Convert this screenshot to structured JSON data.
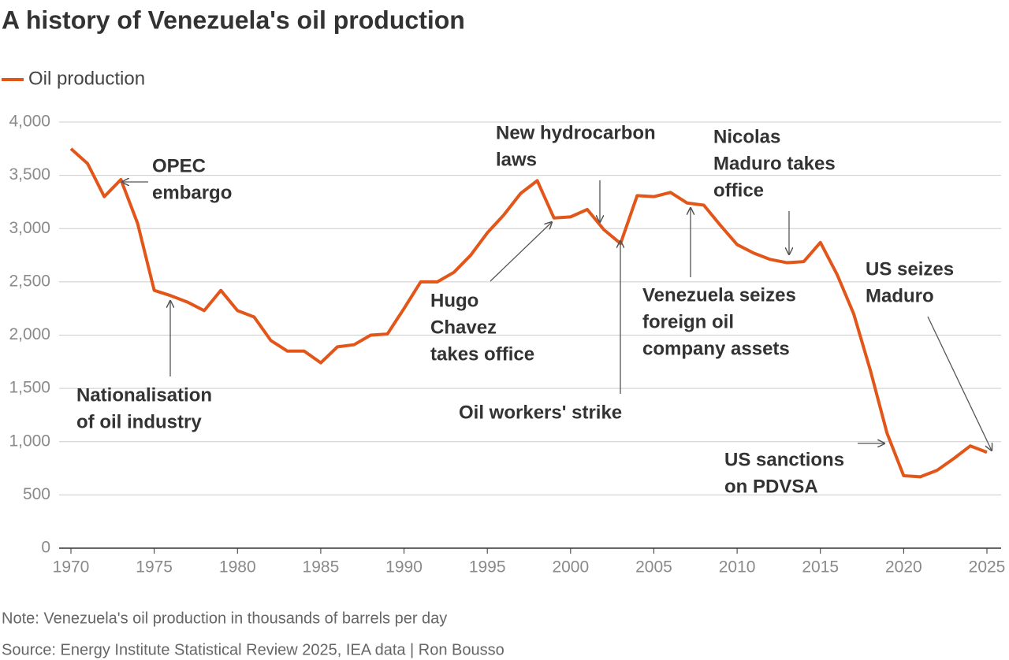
{
  "chart_data": {
    "type": "line",
    "title": "A history of Venezuela's oil production",
    "x": [
      1970,
      1971,
      1972,
      1973,
      1974,
      1975,
      1976,
      1977,
      1978,
      1979,
      1980,
      1981,
      1982,
      1983,
      1984,
      1985,
      1986,
      1987,
      1988,
      1989,
      1990,
      1991,
      1992,
      1993,
      1994,
      1995,
      1996,
      1997,
      1998,
      1999,
      2000,
      2001,
      2002,
      2003,
      2004,
      2005,
      2006,
      2007,
      2008,
      2009,
      2010,
      2011,
      2012,
      2013,
      2014,
      2015,
      2016,
      2017,
      2018,
      2019,
      2020,
      2021,
      2022,
      2023,
      2024,
      2025
    ],
    "series": [
      {
        "name": "Oil production",
        "color": "#e2561a",
        "values": [
          3750,
          3610,
          3300,
          3460,
          3050,
          2420,
          2370,
          2310,
          2230,
          2420,
          2230,
          2170,
          1950,
          1850,
          1850,
          1740,
          1890,
          1910,
          2000,
          2010,
          2250,
          2500,
          2500,
          2590,
          2750,
          2960,
          3130,
          3330,
          3450,
          3100,
          3110,
          3180,
          2990,
          2860,
          3310,
          3300,
          3340,
          3240,
          3220,
          3030,
          2850,
          2770,
          2710,
          2680,
          2690,
          2870,
          2570,
          2200,
          1670,
          1080,
          680,
          670,
          730,
          840,
          960,
          900
        ]
      }
    ],
    "xlim": [
      1970,
      2025
    ],
    "xticks": [
      1970,
      1975,
      1980,
      1985,
      1990,
      1995,
      2000,
      2005,
      2010,
      2015,
      2020,
      2025
    ],
    "ylim": [
      0,
      4000
    ],
    "yticks": [
      0,
      500,
      {
        "value": 1000,
        "label": "1,000"
      },
      {
        "value": 1500,
        "label": "1,500"
      },
      {
        "value": 2000,
        "label": "2,000"
      },
      {
        "value": 2500,
        "label": "2,500"
      },
      {
        "value": 3000,
        "label": "3,000"
      },
      {
        "value": 3500,
        "label": "3,500"
      },
      {
        "value": 4000,
        "label": "4,000"
      }
    ],
    "grid": true,
    "legend": "top-left",
    "annotations": [
      {
        "lines": [
          "OPEC",
          "embargo"
        ]
      },
      {
        "lines": [
          "Nationalisation",
          "of oil industry"
        ]
      },
      {
        "lines": [
          "Hugo",
          "Chavez",
          "takes office"
        ]
      },
      {
        "lines": [
          "New hydrocarbon",
          "laws"
        ]
      },
      {
        "lines": [
          "Oil workers' strike"
        ]
      },
      {
        "lines": [
          "Venezuela seizes",
          "foreign oil",
          "company assets"
        ]
      },
      {
        "lines": [
          "Nicolas",
          "Maduro takes",
          "office"
        ]
      },
      {
        "lines": [
          "US sanctions",
          "on PDVSA"
        ]
      },
      {
        "lines": [
          "US seizes",
          "Maduro"
        ]
      }
    ],
    "notes": [
      "Note: Venezuela's oil production in thousands of barrels per day",
      "Source: Energy Institute Statistical Review 2025, IEA data | Ron Bousso"
    ]
  }
}
